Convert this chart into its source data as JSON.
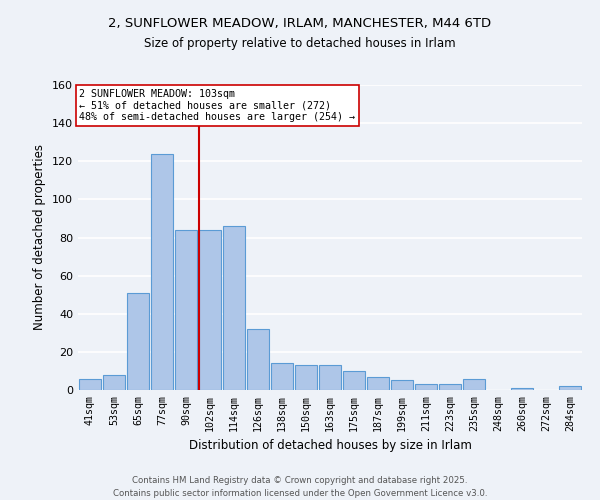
{
  "title": "2, SUNFLOWER MEADOW, IRLAM, MANCHESTER, M44 6TD",
  "subtitle": "Size of property relative to detached houses in Irlam",
  "xlabel": "Distribution of detached houses by size in Irlam",
  "ylabel": "Number of detached properties",
  "bar_labels": [
    "41sqm",
    "53sqm",
    "65sqm",
    "77sqm",
    "90sqm",
    "102sqm",
    "114sqm",
    "126sqm",
    "138sqm",
    "150sqm",
    "163sqm",
    "175sqm",
    "187sqm",
    "199sqm",
    "211sqm",
    "223sqm",
    "235sqm",
    "248sqm",
    "260sqm",
    "272sqm",
    "284sqm"
  ],
  "bar_values": [
    6,
    8,
    51,
    124,
    84,
    84,
    86,
    32,
    14,
    13,
    13,
    10,
    7,
    5,
    3,
    3,
    6,
    0,
    1,
    0,
    2
  ],
  "bar_color": "#aec6e8",
  "bar_edge_color": "#5b9bd5",
  "property_line_index": 5,
  "property_line_color": "#cc0000",
  "annotation_text": "2 SUNFLOWER MEADOW: 103sqm\n← 51% of detached houses are smaller (272)\n48% of semi-detached houses are larger (254) →",
  "ylim": [
    0,
    160
  ],
  "yticks": [
    0,
    20,
    40,
    60,
    80,
    100,
    120,
    140,
    160
  ],
  "background_color": "#eef2f8",
  "grid_color": "#ffffff",
  "footer_line1": "Contains HM Land Registry data © Crown copyright and database right 2025.",
  "footer_line2": "Contains public sector information licensed under the Open Government Licence v3.0."
}
